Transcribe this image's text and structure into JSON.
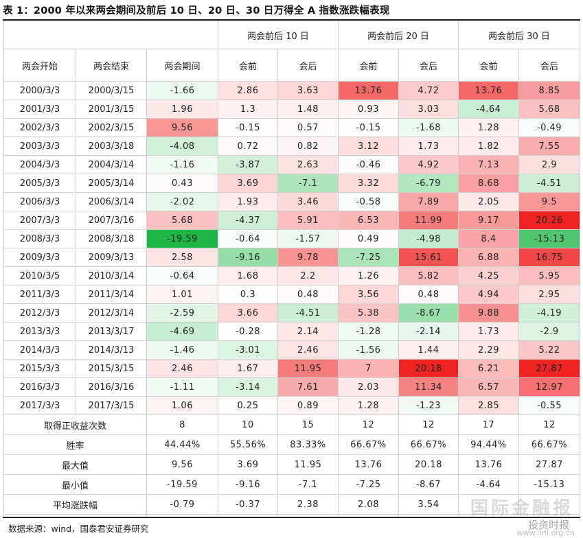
{
  "title": "表 1：2000 年以来两会期间及前后 10 日、20 日、30 日万得全 A 指数涨跌幅表现",
  "group_headers": [
    "两会前后 10 日",
    "两会前后 20 日",
    "两会前后 30 日"
  ],
  "column_headers": [
    "两会开始",
    "两会结束",
    "两会期间",
    "会前",
    "会后",
    "会前",
    "会后",
    "会前",
    "会后"
  ],
  "rows": [
    [
      "2000/3/3",
      "2000/3/15",
      "-1.66",
      "2.86",
      "3.63",
      "13.76",
      "4.72",
      "13.76",
      "8.85"
    ],
    [
      "2001/3/3",
      "2001/3/15",
      "1.96",
      "1.3",
      "1.48",
      "0.93",
      "3.03",
      "-4.64",
      "5.68"
    ],
    [
      "2002/3/3",
      "2002/3/15",
      "9.56",
      "-0.15",
      "0.57",
      "-0.15",
      "-1.68",
      "1.28",
      "-0.49"
    ],
    [
      "2003/3/3",
      "2003/3/18",
      "-4.08",
      "0.72",
      "0.82",
      "3.12",
      "1.73",
      "1.82",
      "7.55"
    ],
    [
      "2004/3/3",
      "2004/3/14",
      "-1.16",
      "-3.87",
      "2.63",
      "-0.46",
      "4.92",
      "7.13",
      "2.9"
    ],
    [
      "2005/3/3",
      "2005/3/14",
      "0.43",
      "3.69",
      "-7.1",
      "3.32",
      "-6.79",
      "8.68",
      "-4.51"
    ],
    [
      "2006/3/3",
      "2006/3/14",
      "-2.02",
      "1.93",
      "3.46",
      "-0.58",
      "7.89",
      "2.05",
      "9.5"
    ],
    [
      "2007/3/3",
      "2007/3/16",
      "5.68",
      "-4.37",
      "5.91",
      "6.53",
      "11.99",
      "9.17",
      "20.26"
    ],
    [
      "2008/3/3",
      "2008/3/18",
      "-19.59",
      "-0.64",
      "-1.57",
      "0.49",
      "-4.98",
      "8.4",
      "-15.13"
    ],
    [
      "2009/3/3",
      "2009/3/13",
      "2.58",
      "-9.16",
      "9.78",
      "-7.25",
      "15.61",
      "6.88",
      "16.75"
    ],
    [
      "2010/3/5",
      "2010/3/14",
      "-0.64",
      "1.68",
      "2.2",
      "1.26",
      "5.82",
      "4.25",
      "5.95"
    ],
    [
      "2011/3/3",
      "2011/3/14",
      "1.01",
      "0.3",
      "0.48",
      "3.56",
      "0.48",
      "4.94",
      "2.95"
    ],
    [
      "2012/3/3",
      "2012/3/14",
      "-2.59",
      "3.66",
      "-4.51",
      "5.38",
      "-8.67",
      "9.88",
      "-4.19"
    ],
    [
      "2013/3/3",
      "2013/3/17",
      "-4.69",
      "-0.28",
      "2.14",
      "-1.28",
      "-2.14",
      "1.73",
      "-2.9"
    ],
    [
      "2014/3/3",
      "2014/3/13",
      "-1.46",
      "-3.01",
      "2.46",
      "-1.56",
      "1.44",
      "2.29",
      "5.22"
    ],
    [
      "2015/3/3",
      "2015/3/15",
      "2.46",
      "1.67",
      "11.95",
      "7",
      "20.18",
      "6.21",
      "27.87"
    ],
    [
      "2016/3/3",
      "2016/3/16",
      "-1.11",
      "-3.14",
      "7.61",
      "2.03",
      "11.34",
      "6.57",
      "12.97"
    ],
    [
      "2017/3/3",
      "2017/3/15",
      "1.06",
      "0.25",
      "0.89",
      "1.28",
      "-1.23",
      "2.85",
      "-0.55"
    ]
  ],
  "summary": [
    {
      "label": "取得正收益次数",
      "values": [
        "8",
        "10",
        "15",
        "12",
        "12",
        "17",
        "12"
      ]
    },
    {
      "label": "胜率",
      "values": [
        "44.44%",
        "55.56%",
        "83.33%",
        "66.67%",
        "66.67%",
        "94.44%",
        "66.67%"
      ]
    },
    {
      "label": "最大值",
      "values": [
        "9.56",
        "3.69",
        "11.95",
        "13.76",
        "20.18",
        "13.76",
        "27.87"
      ]
    },
    {
      "label": "最小值",
      "values": [
        "-19.59",
        "-9.16",
        "-7.1",
        "-7.25",
        "-8.67",
        "-4.64",
        "-15.13"
      ]
    },
    {
      "label": "平均涨跌幅",
      "values": [
        "-0.79",
        "-0.37",
        "2.38",
        "2.08",
        "3.54",
        "",
        ""
      ]
    }
  ],
  "source": "数据来源：wind，国泰君安证券研究",
  "watermark": {
    "main": "国际金融报",
    "sub": "投资时报",
    "url": "www.imi.org.cn"
  },
  "colors": {
    "positive": "#f8696b",
    "negative": "#63be7b",
    "neutral": "#ffffff",
    "border": "#cfcfcf"
  }
}
